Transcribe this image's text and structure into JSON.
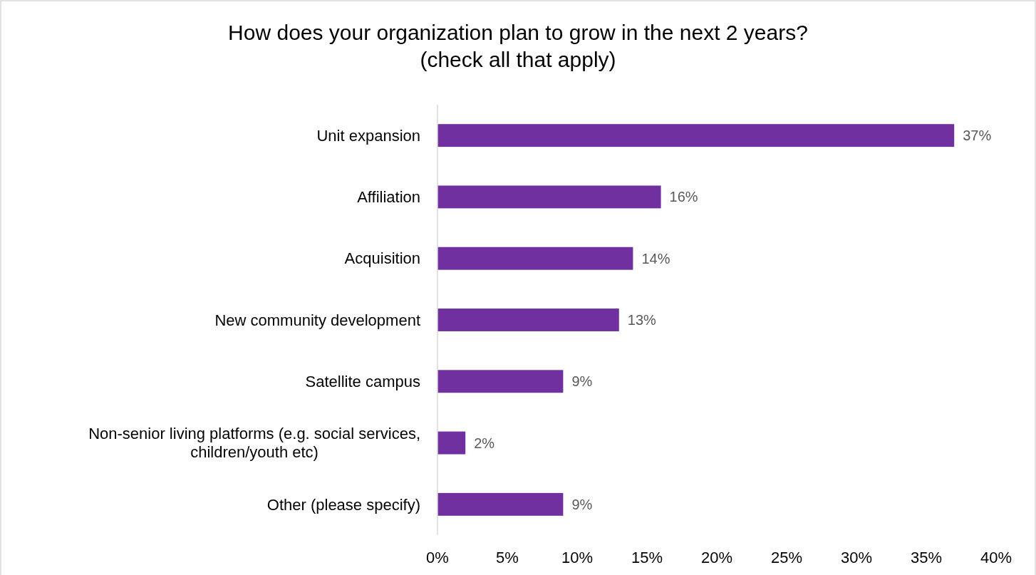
{
  "chart_data": {
    "type": "bar",
    "orientation": "horizontal",
    "title": "How does your organization plan to grow in the next 2 years?\n(check all that apply)",
    "categories": [
      "Unit expansion",
      "Affiliation",
      "Acquisition",
      "New community development",
      "Satellite campus",
      "Non-senior living platforms (e.g. social services, children/youth etc)",
      "Other (please specify)"
    ],
    "values": [
      37,
      16,
      14,
      13,
      9,
      2,
      9
    ],
    "value_labels": [
      "37%",
      "16%",
      "14%",
      "13%",
      "9%",
      "2%",
      "9%"
    ],
    "color": "#7030a0",
    "xlim": [
      0,
      40
    ],
    "legend": false,
    "xticks": [
      {
        "value": 0,
        "label": "0%"
      },
      {
        "value": 5,
        "label": "5%"
      },
      {
        "value": 10,
        "label": "10%"
      },
      {
        "value": 15,
        "label": "15%"
      },
      {
        "value": 20,
        "label": "20%"
      },
      {
        "value": 25,
        "label": "25%"
      },
      {
        "value": 30,
        "label": "30%"
      },
      {
        "value": 35,
        "label": "35%"
      },
      {
        "value": 40,
        "label": "40%"
      }
    ],
    "grid": false
  }
}
